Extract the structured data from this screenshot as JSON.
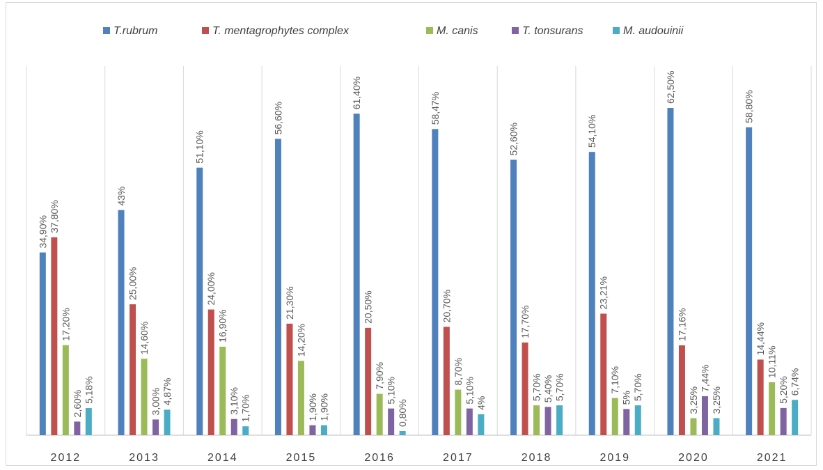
{
  "chart_data": {
    "type": "bar",
    "categories": [
      "2012",
      "2013",
      "2014",
      "2015",
      "2016",
      "2017",
      "2018",
      "2019",
      "2020",
      "2021"
    ],
    "series": [
      {
        "name": "T.rubrum",
        "color": "#4f81bd",
        "values": [
          34.9,
          43,
          51.1,
          56.6,
          61.4,
          58.47,
          52.6,
          54.1,
          62.5,
          58.8
        ],
        "value_labels": [
          "34,90%",
          "43%",
          "51,10%",
          "56,60%",
          "61,40%",
          "58,47%",
          "52,60%",
          "54,10%",
          "62,50%",
          "58,80%"
        ]
      },
      {
        "name": "T. mentagrophytes complex",
        "color": "#c0504d",
        "values": [
          37.8,
          25.0,
          24.0,
          21.3,
          20.5,
          20.7,
          17.7,
          23.21,
          17.16,
          14.44
        ],
        "value_labels": [
          "37,80%",
          "25,00%",
          "24,00%",
          "21,30%",
          "20,50%",
          "20,70%",
          "17,70%",
          "23,21%",
          "17,16%",
          "14,44%"
        ]
      },
      {
        "name": "M. canis",
        "color": "#9bbb59",
        "values": [
          17.2,
          14.6,
          16.9,
          14.2,
          7.9,
          8.7,
          5.7,
          7.1,
          3.25,
          10.11
        ],
        "value_labels": [
          "17,20%",
          "14,60%",
          "16,90%",
          "14,20%",
          "7,90%",
          "8,70%",
          "5,70%",
          "7,10%",
          "3,25%",
          "10,11%"
        ]
      },
      {
        "name": "T. tonsurans",
        "color": "#8064a2",
        "values": [
          2.6,
          3.0,
          3.1,
          1.9,
          5.1,
          5.1,
          5.4,
          5,
          7.44,
          5.2
        ],
        "value_labels": [
          "2,60%",
          "3,00%",
          "3,10%",
          "1,90%",
          "5,10%",
          "5,10%",
          "5,40%",
          "5%",
          "7,44%",
          "5,20%"
        ]
      },
      {
        "name": "M. audouinii",
        "color": "#4bacc6",
        "values": [
          5.18,
          4.87,
          1.7,
          1.9,
          0.8,
          4,
          5.7,
          5.7,
          3.25,
          6.74
        ],
        "value_labels": [
          "5,18%",
          "4,87%",
          "1,70%",
          "1,90%",
          "0,80%",
          "4%",
          "5,70%",
          "5,70%",
          "3,25%",
          "6,74%"
        ]
      }
    ]
  }
}
